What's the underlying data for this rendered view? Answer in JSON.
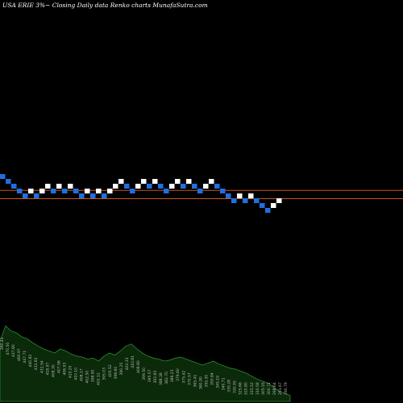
{
  "chart_data": {
    "type": "renko",
    "title": "USA ERIE 3%~  Closing Daily data  Renko  charts MunafaSutra.com",
    "colors": {
      "background": "#000000",
      "up_brick": "#ffffff",
      "down_brick": "#1f6fe0",
      "reference_line": "#c8561e",
      "volume_fill": "#0a2a0a",
      "volume_stroke": "#2e8b2e",
      "volume_label": "#bbbbbb"
    },
    "bricks": [
      {
        "dir": "down",
        "level": 0
      },
      {
        "dir": "down",
        "level": -1
      },
      {
        "dir": "down",
        "level": -2
      },
      {
        "dir": "down",
        "level": -3
      },
      {
        "dir": "down",
        "level": -4
      },
      {
        "dir": "up",
        "level": -3
      },
      {
        "dir": "down",
        "level": -4
      },
      {
        "dir": "up",
        "level": -3
      },
      {
        "dir": "up",
        "level": -2
      },
      {
        "dir": "down",
        "level": -3
      },
      {
        "dir": "up",
        "level": -2
      },
      {
        "dir": "down",
        "level": -3
      },
      {
        "dir": "up",
        "level": -2
      },
      {
        "dir": "down",
        "level": -3
      },
      {
        "dir": "down",
        "level": -4
      },
      {
        "dir": "up",
        "level": -3
      },
      {
        "dir": "down",
        "level": -4
      },
      {
        "dir": "up",
        "level": -3
      },
      {
        "dir": "down",
        "level": -4
      },
      {
        "dir": "up",
        "level": -3
      },
      {
        "dir": "up",
        "level": -2
      },
      {
        "dir": "up",
        "level": -1
      },
      {
        "dir": "down",
        "level": -2
      },
      {
        "dir": "down",
        "level": -3
      },
      {
        "dir": "up",
        "level": -2
      },
      {
        "dir": "up",
        "level": -1
      },
      {
        "dir": "down",
        "level": -2
      },
      {
        "dir": "up",
        "level": -1
      },
      {
        "dir": "down",
        "level": -2
      },
      {
        "dir": "down",
        "level": -3
      },
      {
        "dir": "up",
        "level": -2
      },
      {
        "dir": "up",
        "level": -1
      },
      {
        "dir": "down",
        "level": -2
      },
      {
        "dir": "up",
        "level": -1
      },
      {
        "dir": "down",
        "level": -2
      },
      {
        "dir": "down",
        "level": -3
      },
      {
        "dir": "up",
        "level": -2
      },
      {
        "dir": "up",
        "level": -1
      },
      {
        "dir": "down",
        "level": -2
      },
      {
        "dir": "down",
        "level": -3
      },
      {
        "dir": "down",
        "level": -4
      },
      {
        "dir": "down",
        "level": -5
      },
      {
        "dir": "up",
        "level": -4
      },
      {
        "dir": "down",
        "level": -5
      },
      {
        "dir": "up",
        "level": -4
      },
      {
        "dir": "down",
        "level": -5
      },
      {
        "dir": "down",
        "level": -6
      },
      {
        "dir": "down",
        "level": -7
      },
      {
        "dir": "up",
        "level": -6
      },
      {
        "dir": "up",
        "level": -5
      }
    ],
    "reference_lines": [
      -3.3,
      -5.0
    ],
    "volume_labels": [
      "390.43",
      "470.50",
      "437.80",
      "460.97",
      "447.71",
      "440.82",
      "432.63",
      "431.54",
      "418.97",
      "408.30",
      "407.56",
      "406.93",
      "415.20",
      "410.10",
      "408.17",
      "402.50",
      "398.90",
      "402.12",
      "395.03",
      "405.52",
      "398.60",
      "390.25",
      "402.33",
      "410.81",
      "406.80",
      "399.50",
      "395.57",
      "392.65",
      "388.38",
      "382.70",
      "386.23",
      "379.60",
      "375.42",
      "370.57",
      "365.41",
      "360.90",
      "355.30",
      "350.84",
      "345.19",
      "340.71",
      "335.28",
      "330.95",
      "325.66",
      "320.80",
      "315.52",
      "310.58",
      "305.55",
      "300.71",
      "298.64",
      "291.67",
      "290.79"
    ],
    "volume": [
      60,
      75,
      70,
      68,
      64,
      62,
      58,
      55,
      52,
      50,
      48,
      52,
      50,
      47,
      45,
      44,
      42,
      43,
      40,
      45,
      48,
      46,
      50,
      55,
      57,
      52,
      48,
      45,
      43,
      42,
      40,
      41,
      43,
      44,
      42,
      40,
      38,
      36,
      38,
      40,
      37,
      35,
      33,
      32,
      30,
      28,
      25,
      22,
      20,
      18,
      14,
      10,
      8,
      6
    ]
  }
}
